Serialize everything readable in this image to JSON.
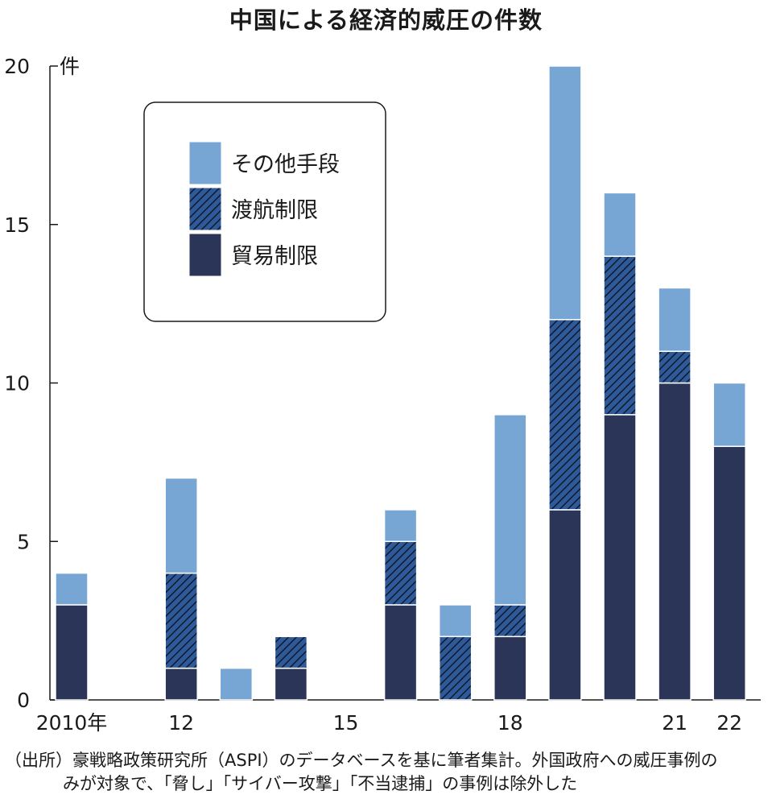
{
  "chart_data": {
    "type": "bar",
    "stacked": true,
    "title": "中国による経済的威圧の件数",
    "ylabel": "件",
    "xlabel": "",
    "ylim": [
      0,
      20
    ],
    "y_ticks": [
      "0",
      "5",
      "10",
      "15",
      "20"
    ],
    "categories": [
      "2010",
      "2011",
      "2012",
      "2013",
      "2014",
      "2015",
      "2016",
      "2017",
      "2018",
      "2019",
      "2020",
      "2021",
      "2022"
    ],
    "x_tick_labels": [
      {
        "index": 0,
        "label": "2010年"
      },
      {
        "index": 2,
        "label": "12"
      },
      {
        "index": 5,
        "label": "15"
      },
      {
        "index": 8,
        "label": "18"
      },
      {
        "index": 11,
        "label": "21"
      },
      {
        "index": 12,
        "label": "22"
      }
    ],
    "series": [
      {
        "name": "貿易制限",
        "values": [
          3,
          0,
          1,
          0,
          1,
          0,
          3,
          0,
          2,
          6,
          9,
          10,
          8
        ]
      },
      {
        "name": "渡航制限",
        "values": [
          0,
          0,
          3,
          0,
          1,
          0,
          2,
          2,
          1,
          6,
          5,
          1,
          0
        ]
      },
      {
        "name": "その他手段",
        "values": [
          1,
          0,
          3,
          1,
          0,
          0,
          1,
          1,
          6,
          8,
          2,
          2,
          2
        ]
      }
    ],
    "legend": {
      "position": "top-left",
      "order": [
        "その他手段",
        "渡航制限",
        "貿易制限"
      ]
    },
    "colors": {
      "貿易制限": "#2b3557",
      "渡航制限": "#2f5a9a",
      "その他手段": "#77a6d4"
    },
    "grid": false
  },
  "footnote": {
    "line1": "（出所）豪戦略政策研究所（ASPI）のデータベースを基に筆者集計。外国政府への威圧事例の",
    "line2": "みが対象で、「脅し」「サイバー攻撃」「不当逮捕」の事例は除外した"
  }
}
